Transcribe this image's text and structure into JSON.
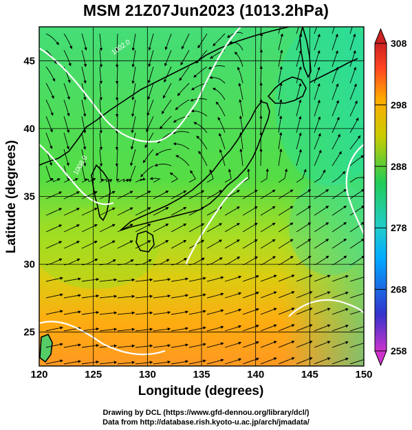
{
  "title": "MSM 21Z07Jun2023 (1013.2hPa)",
  "x_axis": {
    "label": "Longitude (degrees)",
    "range": [
      120,
      150
    ],
    "ticks": [
      "120",
      "125",
      "130",
      "135",
      "140",
      "145",
      "150"
    ]
  },
  "y_axis": {
    "label": "Latitude  (degrees)",
    "range": [
      22.5,
      47.5
    ],
    "ticks": [
      "25",
      "30",
      "35",
      "40",
      "45"
    ]
  },
  "colorbar": {
    "range": [
      258,
      308
    ],
    "ticks": [
      "258",
      "268",
      "278",
      "288",
      "298",
      "308"
    ],
    "colors": [
      "#cc33cc",
      "#3333cc",
      "#00aaff",
      "#22cccc",
      "#22cc55",
      "#cccc00",
      "#ffaa00",
      "#ff4422",
      "#cc2222"
    ]
  },
  "isobar_labels": [
    "1002.0",
    "1008.0"
  ],
  "field_colors": {
    "cool": "#33dd66",
    "mid": "#88dd33",
    "warm": "#ddcc11",
    "hot": "#ff9922",
    "sea_cool": "#22dd99",
    "contour": "#ffffff"
  },
  "credits": {
    "line1": "Drawing by DCL (https://www.gfd-dennou.org/library/dcl/)",
    "line2": "Data from http://database.rish.kyoto-u.ac.jp/arch/jmadata/"
  }
}
